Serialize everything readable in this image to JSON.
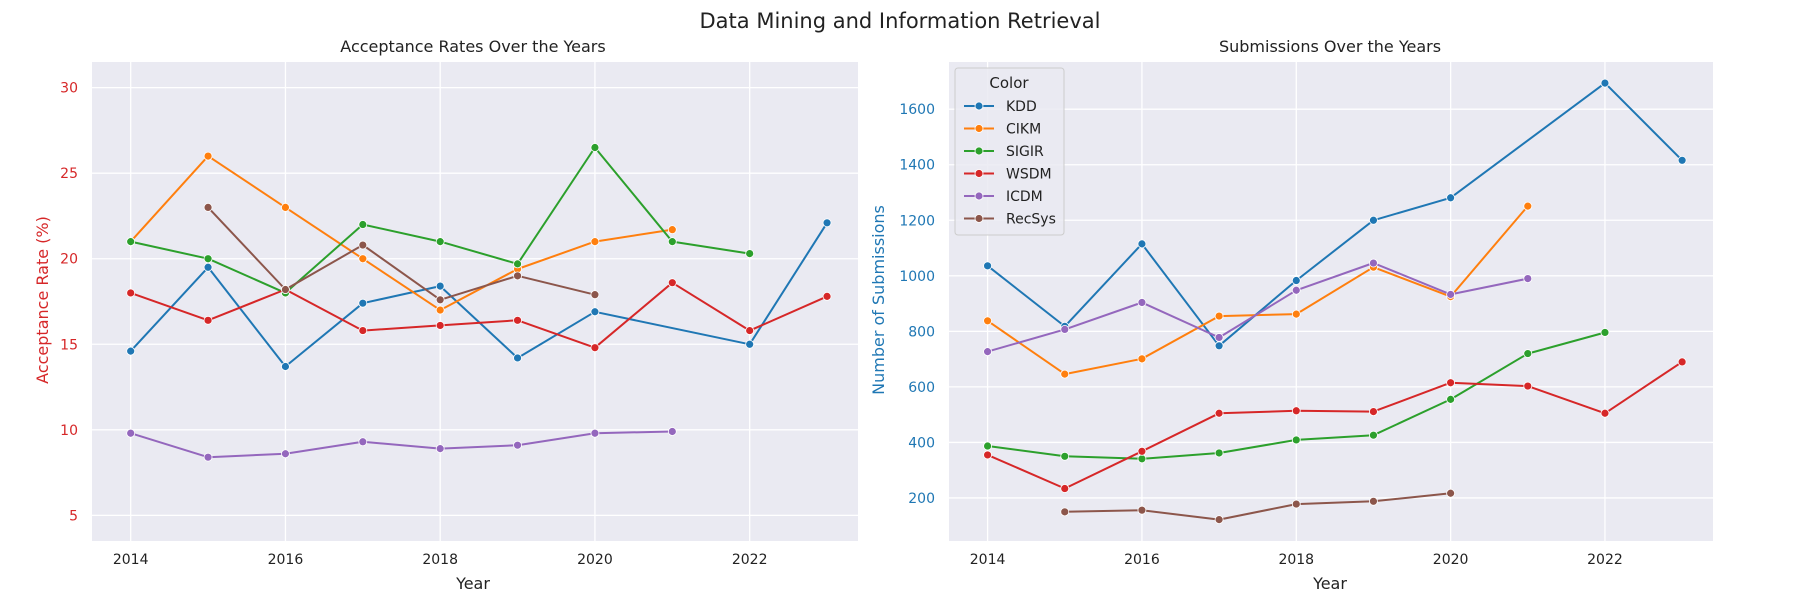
{
  "title": "Data Mining and Information Retrieval",
  "colors": {
    "KDD": "#1f77b4",
    "CIKM": "#ff7f0e",
    "SIGIR": "#2ca02c",
    "WSDM": "#d62728",
    "ICDM": "#9467bd",
    "RecSys": "#8c564b",
    "left_ylabel": "#d62728",
    "right_ylabel": "#1f77b4",
    "panel_bg": "#eaeaf2",
    "grid": "#ffffff"
  },
  "legend": {
    "title": "Color",
    "placement": "upper-left of right panel",
    "entries": [
      "KDD",
      "CIKM",
      "SIGIR",
      "WSDM",
      "ICDM",
      "RecSys"
    ]
  },
  "chart_data": [
    {
      "type": "line",
      "title": "Acceptance Rates Over the Years",
      "xlabel": "Year",
      "ylabel": "Acceptance Rate (%)",
      "xlim": [
        2013.5,
        2023.4
      ],
      "ylim": [
        3.5,
        31.5
      ],
      "xticks": [
        2014,
        2016,
        2018,
        2020,
        2022
      ],
      "yticks": [
        5,
        10,
        15,
        20,
        25,
        30
      ],
      "grid": true,
      "series": [
        {
          "name": "KDD",
          "x": [
            2014,
            2015,
            2016,
            2017,
            2018,
            2019,
            2020,
            2022,
            2023
          ],
          "y": [
            14.6,
            19.5,
            13.7,
            17.4,
            18.4,
            14.2,
            16.9,
            15.0,
            22.1
          ]
        },
        {
          "name": "CIKM",
          "x": [
            2014,
            2015,
            2016,
            2017,
            2018,
            2019,
            2020,
            2021
          ],
          "y": [
            21.0,
            26.0,
            23.0,
            20.0,
            17.0,
            19.4,
            21.0,
            21.7
          ]
        },
        {
          "name": "SIGIR",
          "x": [
            2014,
            2015,
            2016,
            2017,
            2018,
            2019,
            2020,
            2021,
            2022
          ],
          "y": [
            21.0,
            20.0,
            18.0,
            22.0,
            21.0,
            19.7,
            26.5,
            21.0,
            20.3
          ]
        },
        {
          "name": "WSDM",
          "x": [
            2014,
            2015,
            2016,
            2017,
            2018,
            2019,
            2020,
            2021,
            2022,
            2023
          ],
          "y": [
            18.0,
            16.4,
            18.2,
            15.8,
            16.1,
            16.4,
            14.8,
            18.6,
            15.8,
            17.8
          ]
        },
        {
          "name": "ICDM",
          "x": [
            2014,
            2015,
            2016,
            2017,
            2018,
            2019,
            2020,
            2021
          ],
          "y": [
            9.8,
            8.4,
            8.6,
            9.3,
            8.9,
            9.1,
            9.8,
            9.9
          ]
        },
        {
          "name": "RecSys",
          "x": [
            2015,
            2016,
            2017,
            2018,
            2019,
            2020
          ],
          "y": [
            23.0,
            18.2,
            20.8,
            17.6,
            19.0,
            17.9
          ]
        }
      ]
    },
    {
      "type": "line",
      "title": "Submissions Over the Years",
      "xlabel": "Year",
      "ylabel": "Number of Submissions",
      "xlim": [
        2013.5,
        2023.4
      ],
      "ylim": [
        45,
        1770
      ],
      "xticks": [
        2014,
        2016,
        2018,
        2020,
        2022
      ],
      "yticks": [
        200,
        400,
        600,
        800,
        1000,
        1200,
        1400,
        1600
      ],
      "grid": true,
      "series": [
        {
          "name": "KDD",
          "x": [
            2014,
            2015,
            2016,
            2017,
            2018,
            2019,
            2020,
            2022,
            2023
          ],
          "y": [
            1036,
            818,
            1115,
            748,
            983,
            1200,
            1281,
            1694,
            1416
          ]
        },
        {
          "name": "CIKM",
          "x": [
            2014,
            2015,
            2016,
            2017,
            2018,
            2019,
            2020,
            2021
          ],
          "y": [
            838,
            646,
            701,
            855,
            862,
            1031,
            925,
            1251
          ]
        },
        {
          "name": "SIGIR",
          "x": [
            2014,
            2015,
            2016,
            2017,
            2018,
            2019,
            2020,
            2021,
            2022
          ],
          "y": [
            387,
            350,
            341,
            362,
            409,
            426,
            555,
            720,
            796
          ]
        },
        {
          "name": "WSDM",
          "x": [
            2014,
            2015,
            2016,
            2017,
            2018,
            2019,
            2020,
            2021,
            2022,
            2023
          ],
          "y": [
            355,
            234,
            368,
            505,
            514,
            511,
            615,
            603,
            505,
            690
          ]
        },
        {
          "name": "ICDM",
          "x": [
            2014,
            2015,
            2016,
            2017,
            2018,
            2019,
            2020,
            2021
          ],
          "y": [
            727,
            807,
            904,
            778,
            948,
            1046,
            933,
            990
          ]
        },
        {
          "name": "RecSys",
          "x": [
            2015,
            2016,
            2017,
            2018,
            2019,
            2020
          ],
          "y": [
            150,
            156,
            122,
            178,
            188,
            217
          ]
        }
      ]
    }
  ]
}
